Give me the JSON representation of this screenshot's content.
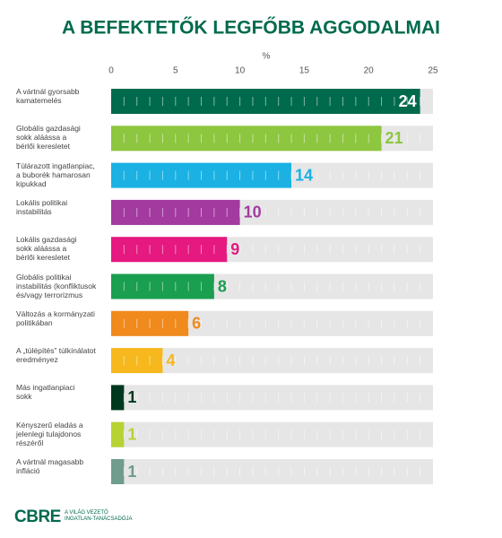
{
  "chart_data": {
    "type": "bar",
    "orientation": "horizontal",
    "title": "A BEFEKTETŐK LEGFŐBB AGGODALMAI",
    "x_label": "%",
    "categories": [
      "A vártnál gyorsabb\nkamatemelés",
      "Globális gazdasági\nsokk aláássa a\nbérlői keresletet",
      "Túlárazott ingatlanpiac,\na buborék hamarosan\nkipukkad",
      "Lokális politikai\ninstabilitás",
      "Lokális gazdasági\nsokk aláássa a\nbérlői keresletet",
      "Globális politikai\ninstabilitás (konfliktusok\nés/vagy terrorizmus",
      "Változás a kormányzati\npolitikában",
      "A „túlépítés” túlkínálatot\neredményez",
      "Más ingatlanpiaci\nsokk",
      "Kényszerű eladás a\njelenlegi tulajdonos\nrészéről",
      "A vártnál magasabb\ninfláció"
    ],
    "values": [
      24,
      21,
      14,
      10,
      9,
      8,
      6,
      4,
      1,
      1,
      1
    ],
    "colors": [
      "#006a4d",
      "#8dc63f",
      "#1bb1e3",
      "#a23aa0",
      "#e5197f",
      "#1a9e50",
      "#f08a1c",
      "#f6b81c",
      "#00381f",
      "#b6d334",
      "#6f9c8c"
    ],
    "xlim": [
      0,
      25
    ],
    "xticks": [
      0,
      5,
      10,
      15,
      20,
      25
    ]
  },
  "footer": {
    "logo": "CBRE",
    "tagline": "A VILÁG VEZETŐ\nINGATLAN-TANÁCSADÓJA"
  }
}
